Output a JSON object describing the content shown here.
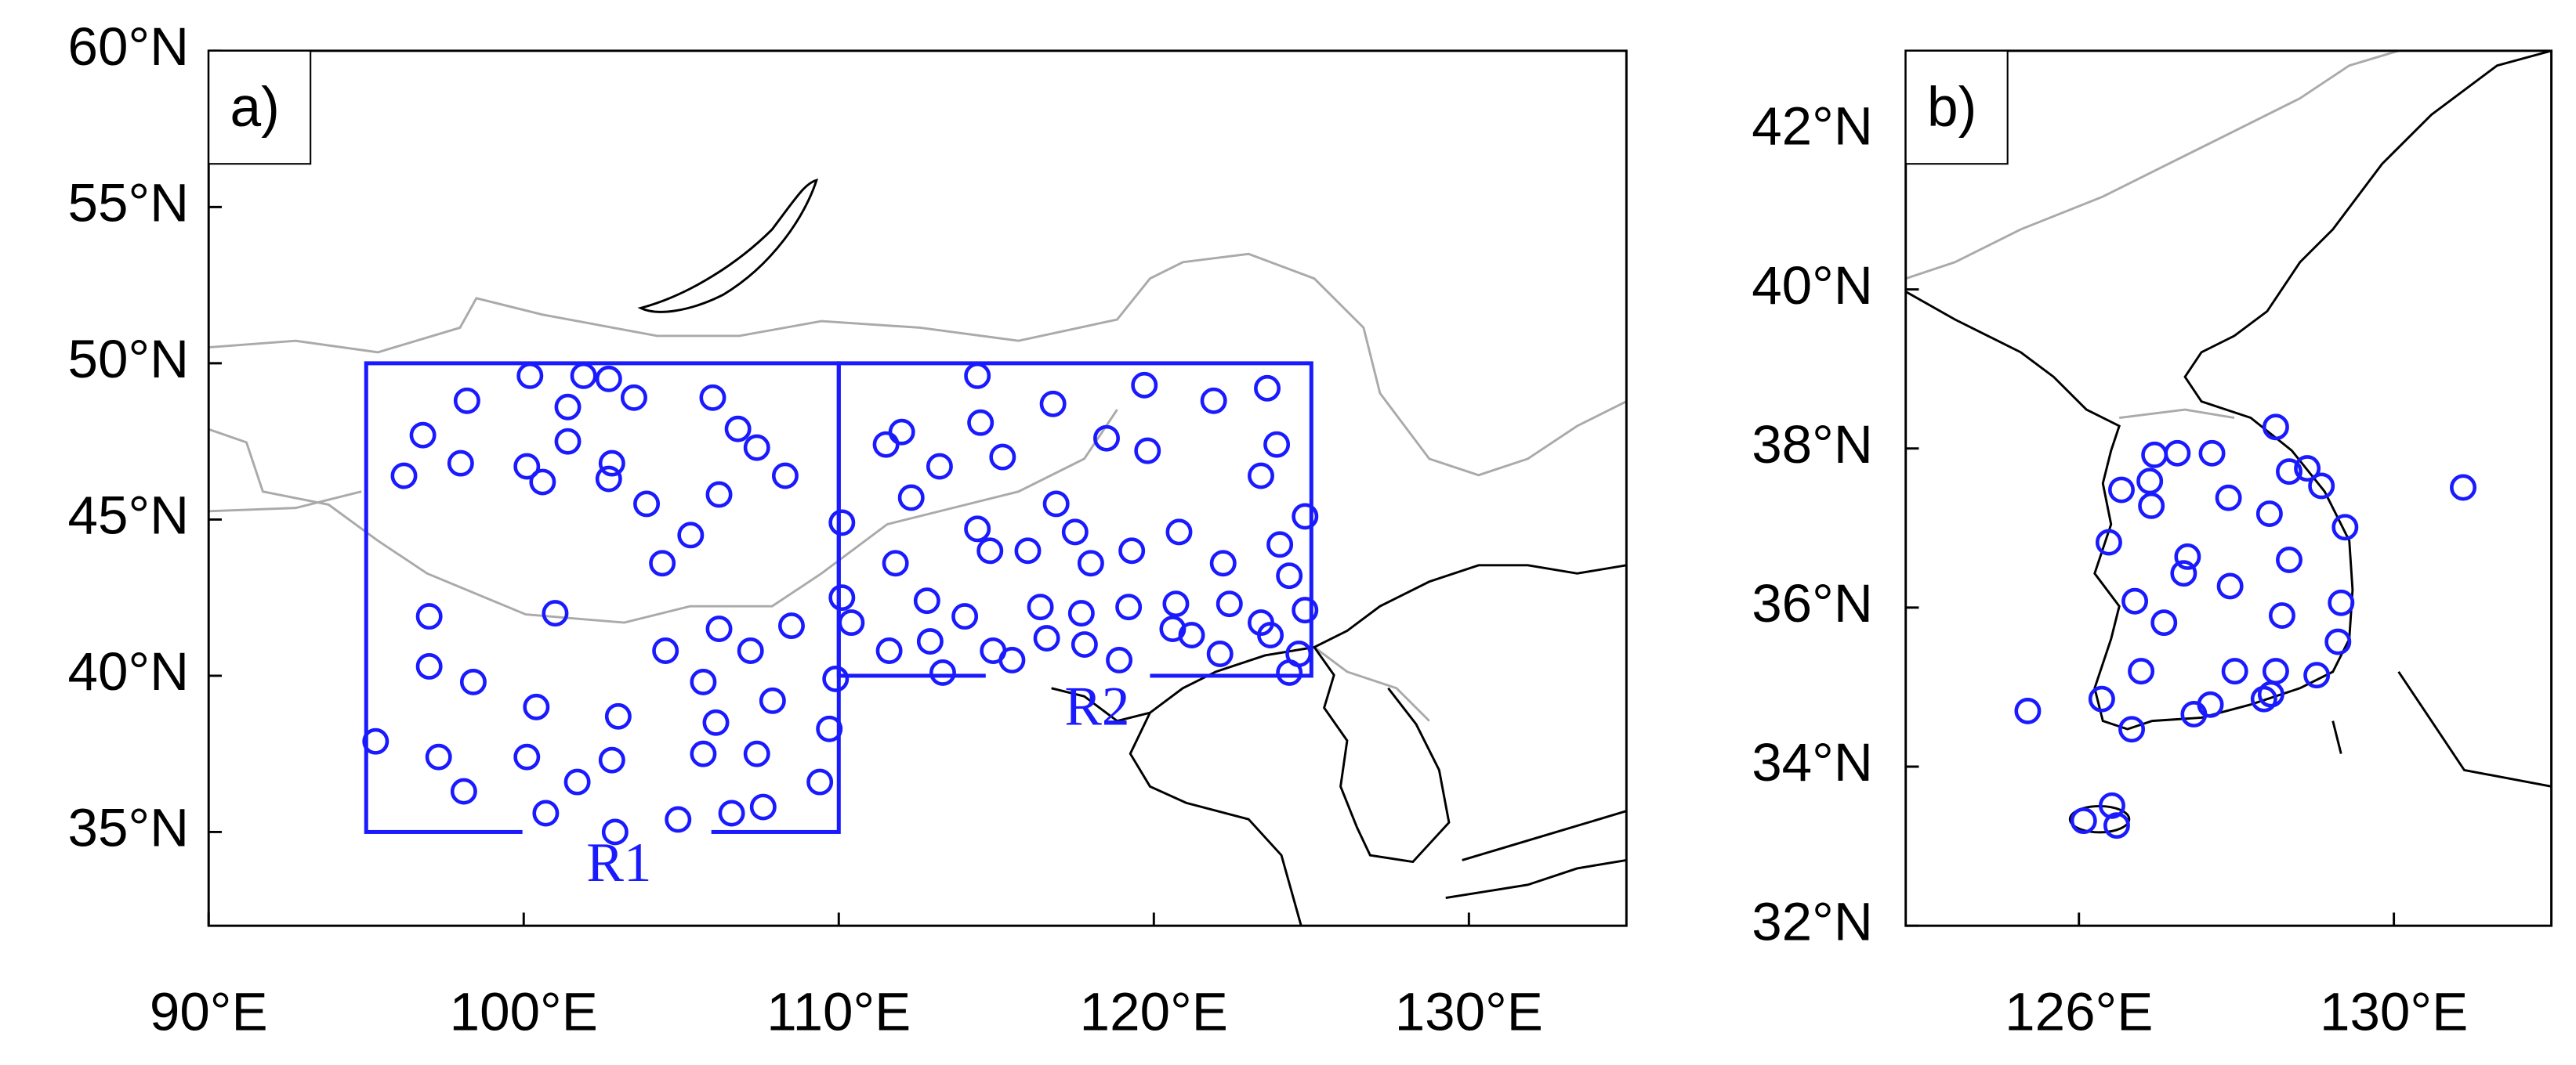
{
  "panels": [
    {
      "label": "a)",
      "xlim": [
        90,
        135
      ],
      "ylim": [
        32,
        60
      ],
      "xticks": [
        {
          "value": 90,
          "label": "90°E"
        },
        {
          "value": 100,
          "label": "100°E"
        },
        {
          "value": 110,
          "label": "110°E"
        },
        {
          "value": 120,
          "label": "120°E"
        },
        {
          "value": 130,
          "label": "130°E"
        }
      ],
      "yticks": [
        {
          "value": 35,
          "label": "35°N"
        },
        {
          "value": 40,
          "label": "40°N"
        },
        {
          "value": 45,
          "label": "45°N"
        },
        {
          "value": 50,
          "label": "50°N"
        },
        {
          "value": 55,
          "label": "55°N"
        },
        {
          "value": 60,
          "label": "60°N"
        }
      ],
      "station_color": "#1a1aff",
      "regions": [
        {
          "name": "R1",
          "lon": [
            95,
            110
          ],
          "lat": [
            35,
            50
          ]
        },
        {
          "name": "R2",
          "lon": [
            110,
            125
          ],
          "lat": [
            40,
            50
          ]
        }
      ],
      "stations": {
        "lon": [
          96.2,
          96.8,
          98.2,
          98.0,
          100.2,
          100.1,
          100.6,
          101.4,
          101.4,
          101.9,
          102.7,
          103.5,
          102.8,
          102.7,
          103.9,
          104.4,
          105.3,
          106.0,
          106.2,
          106.8,
          107.4,
          108.3,
          97.0,
          97.0,
          98.4,
          95.3,
          97.3,
          98.1,
          100.4,
          100.1,
          101.0,
          101.7,
          100.7,
          102.8,
          103.0,
          102.9,
          104.5,
          104.9,
          105.7,
          106.2,
          106.1,
          105.7,
          106.6,
          107.4,
          107.2,
          107.9,
          107.6,
          108.5,
          109.4,
          109.7,
          110.1,
          110.1,
          110.4,
          109.9,
          111.5,
          112.0,
          112.3,
          113.2,
          111.8,
          112.8,
          112.9,
          113.3,
          111.6,
          114.0,
          114.4,
          114.4,
          114.5,
          115.2,
          114.8,
          115.5,
          114.9,
          116.0,
          116.4,
          116.6,
          116.8,
          116.9,
          117.5,
          118.0,
          117.7,
          117.8,
          118.5,
          119.2,
          118.9,
          119.3,
          119.7,
          119.8,
          120.7,
          120.6,
          120.8,
          121.2,
          121.9,
          122.2,
          122.4,
          122.1,
          123.4,
          123.6,
          123.9,
          124.0,
          124.3,
          123.4,
          123.7,
          124.6,
          124.3,
          124.8,
          124.8
        ],
        "lat": [
          46.4,
          47.7,
          48.8,
          46.8,
          49.6,
          46.7,
          46.2,
          47.5,
          48.6,
          49.6,
          49.5,
          48.9,
          46.8,
          46.3,
          45.5,
          43.6,
          44.5,
          48.9,
          45.8,
          47.9,
          47.3,
          46.4,
          41.9,
          40.3,
          39.8,
          37.9,
          37.4,
          36.3,
          39.0,
          37.4,
          42.0,
          36.6,
          35.6,
          37.3,
          38.7,
          35.0,
          40.8,
          35.4,
          39.8,
          41.5,
          38.5,
          37.5,
          35.6,
          37.5,
          40.8,
          39.2,
          35.8,
          41.6,
          36.6,
          38.3,
          44.9,
          42.5,
          41.7,
          39.9,
          47.4,
          47.8,
          45.7,
          46.7,
          43.6,
          42.4,
          41.1,
          40.1,
          40.8,
          41.9,
          44.7,
          49.6,
          48.1,
          47.0,
          44.0,
          40.5,
          40.8,
          44.0,
          42.2,
          41.2,
          48.7,
          45.5,
          44.6,
          43.6,
          42.0,
          41.0,
          47.6,
          42.2,
          40.5,
          44.0,
          49.3,
          47.2,
          42.3,
          41.5,
          44.6,
          41.3,
          48.8,
          43.6,
          42.3,
          40.7,
          46.4,
          49.2,
          47.4,
          44.2,
          43.2,
          41.7,
          41.3,
          40.7,
          40.1,
          45.1,
          42.1
        ]
      }
    },
    {
      "label": "b)",
      "xlim": [
        123.8,
        132
      ],
      "ylim": [
        32,
        43
      ],
      "xticks": [
        {
          "value": 126,
          "label": "126°E"
        },
        {
          "value": 130,
          "label": "130°E"
        }
      ],
      "yticks": [
        {
          "value": 32,
          "label": "32°N"
        },
        {
          "value": 34,
          "label": "34°N"
        },
        {
          "value": 36,
          "label": "36°N"
        },
        {
          "value": 38,
          "label": "38°N"
        },
        {
          "value": 40,
          "label": "40°N"
        },
        {
          "value": 42,
          "label": "42°N"
        }
      ],
      "station_color": "#1a1aff",
      "regions": [],
      "stations": {
        "lon": [
          125.35,
          126.06,
          126.42,
          126.48,
          126.29,
          126.67,
          126.54,
          126.9,
          126.96,
          127.25,
          126.92,
          126.71,
          126.38,
          127.08,
          126.79,
          127.69,
          127.9,
          127.38,
          127.33,
          127.92,
          127.98,
          127.67,
          127.46,
          128.5,
          128.67,
          128.42,
          128.67,
          128.9,
          129.08,
          129.38,
          129.33,
          128.58,
          129.29,
          128.5,
          128.35,
          129.02,
          128.44,
          130.88
        ],
        "lat": [
          34.7,
          33.32,
          33.51,
          33.26,
          34.85,
          34.47,
          37.48,
          37.59,
          37.92,
          37.94,
          37.28,
          36.08,
          36.82,
          35.81,
          35.2,
          37.94,
          37.38,
          36.64,
          36.43,
          36.27,
          35.2,
          34.78,
          34.66,
          38.27,
          37.71,
          37.18,
          36.6,
          37.75,
          37.53,
          37.01,
          36.06,
          35.9,
          35.57,
          35.2,
          34.85,
          35.15,
          34.91,
          37.51
        ]
      }
    }
  ]
}
